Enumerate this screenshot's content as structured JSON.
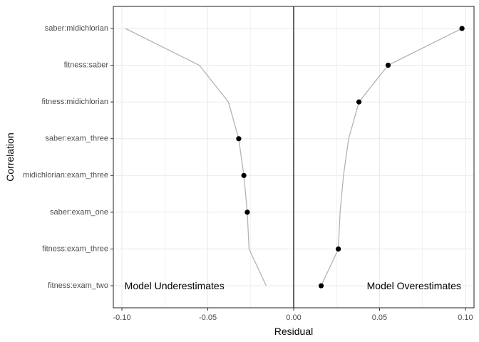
{
  "chart_data": {
    "type": "scatter",
    "xlabel": "Residual",
    "ylabel": "Correlation",
    "xlim": [
      -0.105,
      0.105
    ],
    "x_ticks": [
      -0.1,
      -0.05,
      0.0,
      0.05,
      0.1
    ],
    "x_tick_labels": [
      "-0.10",
      "-0.05",
      "0.00",
      "0.05",
      "0.10"
    ],
    "categories": [
      "saber:midichlorian",
      "fitness:saber",
      "fitness:midichlorian",
      "saber:exam_three",
      "midichlorian:exam_three",
      "saber:exam_one",
      "fitness:exam_three",
      "fitness:exam_two"
    ],
    "points": [
      {
        "y": "saber:midichlorian",
        "x": 0.098
      },
      {
        "y": "fitness:saber",
        "x": 0.055
      },
      {
        "y": "fitness:midichlorian",
        "x": 0.038
      },
      {
        "y": "saber:exam_three",
        "x": -0.032
      },
      {
        "y": "midichlorian:exam_three",
        "x": -0.029
      },
      {
        "y": "saber:exam_one",
        "x": -0.027
      },
      {
        "y": "fitness:exam_three",
        "x": 0.026
      },
      {
        "y": "fitness:exam_two",
        "x": 0.016
      }
    ],
    "lines": [
      {
        "name": "",
        "color": "#b3b3b3",
        "x": [
          -0.098,
          -0.055,
          -0.038,
          -0.032,
          -0.029,
          -0.027,
          -0.026,
          -0.016
        ]
      },
      {
        "name": "",
        "color": "#b3b3b3",
        "x": [
          0.098,
          0.055,
          0.038,
          0.032,
          0.029,
          0.027,
          0.026,
          0.016
        ]
      }
    ],
    "reference_line_x": 0,
    "annotations": [
      {
        "text": "Model Underestimates",
        "x": -0.0985,
        "y": "fitness:exam_two",
        "anchor": "start"
      },
      {
        "text": "Model Overestimates",
        "x": 0.0975,
        "y": "fitness:exam_two",
        "anchor": "end"
      }
    ],
    "grid": true,
    "theme": "bw",
    "colors": {
      "points": "#000000",
      "lines": "#b3b3b3",
      "grid": "#ebebeb",
      "panel_border": "#333333",
      "reference_line": "#000000"
    }
  }
}
